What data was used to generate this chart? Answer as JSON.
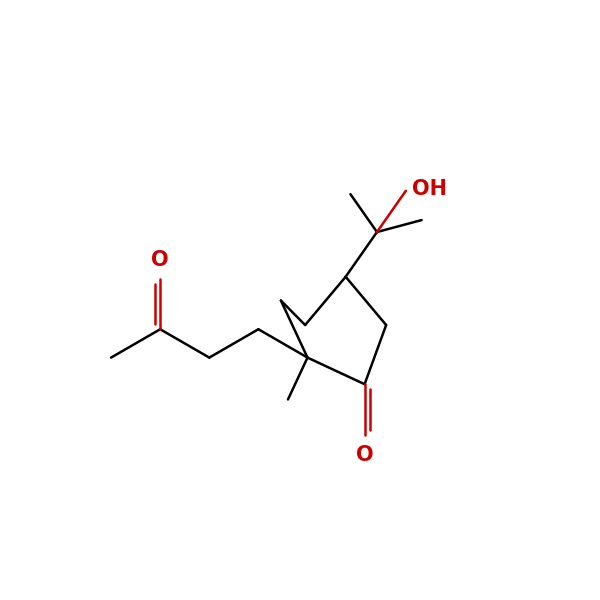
{
  "background": "#ffffff",
  "bond_color": "#000000",
  "oxygen_color": "#cc0000",
  "line_width": 1.8,
  "font_size_label": 13,
  "fig_width": 6.0,
  "fig_height": 6.0,
  "dpi": 100,
  "xlim": [
    -0.5,
    10.5
  ],
  "ylim": [
    -1.0,
    10.0
  ]
}
